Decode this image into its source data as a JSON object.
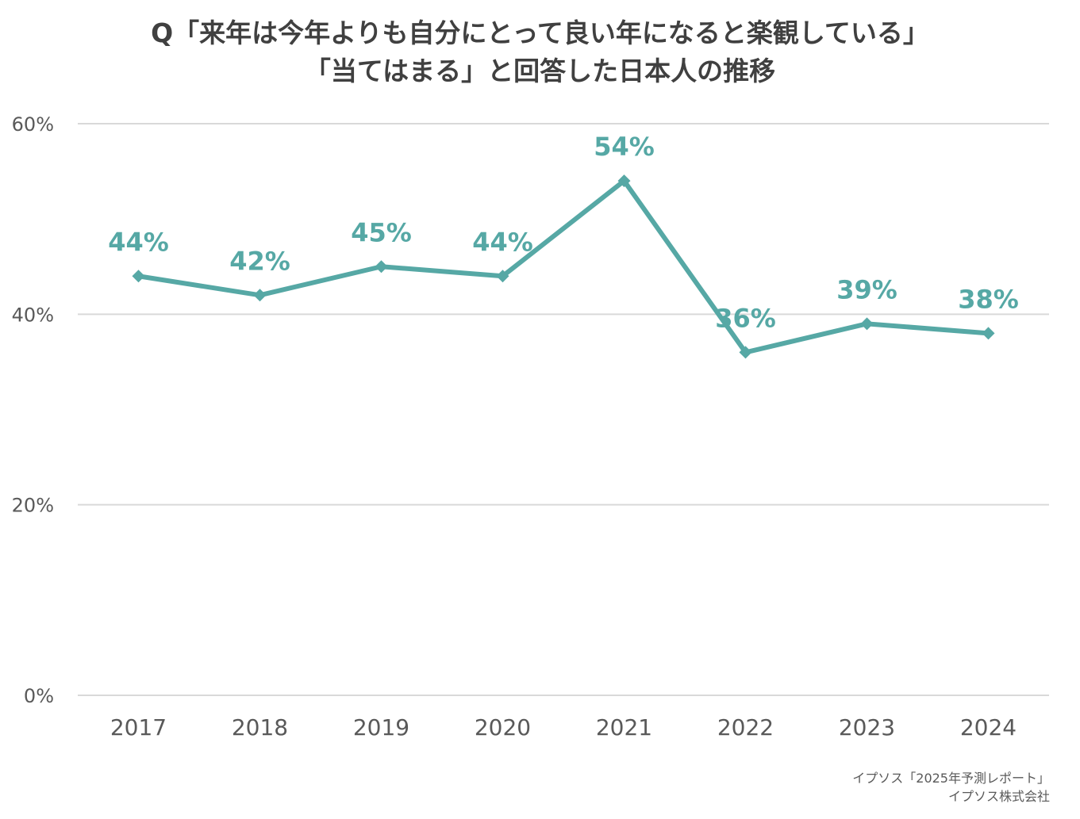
{
  "chart_data": {
    "type": "line",
    "title_lines": [
      "Q「来年は今年よりも自分にとって良い年になると楽観している」",
      "「当てはまる」と回答した日本人の推移"
    ],
    "categories": [
      "2017",
      "2018",
      "2019",
      "2020",
      "2021",
      "2022",
      "2023",
      "2024"
    ],
    "series": [
      {
        "name": "当てはまる",
        "values": [
          44,
          42,
          45,
          44,
          54,
          36,
          39,
          38
        ],
        "labels": [
          "44%",
          "42%",
          "45%",
          "44%",
          "54%",
          "36%",
          "39%",
          "38%"
        ],
        "color": "#56A8A5"
      }
    ],
    "ylim": [
      0,
      60
    ],
    "yticks": [
      0,
      20,
      40,
      60
    ],
    "ytick_labels": [
      "0%",
      "20%",
      "40%",
      "60%"
    ],
    "grid": true,
    "xlabel": "",
    "ylabel": ""
  },
  "source": {
    "line1": "イプソス「2025年予測レポート」",
    "line2": "イプソス株式会社"
  },
  "colors": {
    "series": "#56A8A5",
    "grid": "#D9D9D9",
    "axis_text": "#595959",
    "title": "#404040"
  }
}
